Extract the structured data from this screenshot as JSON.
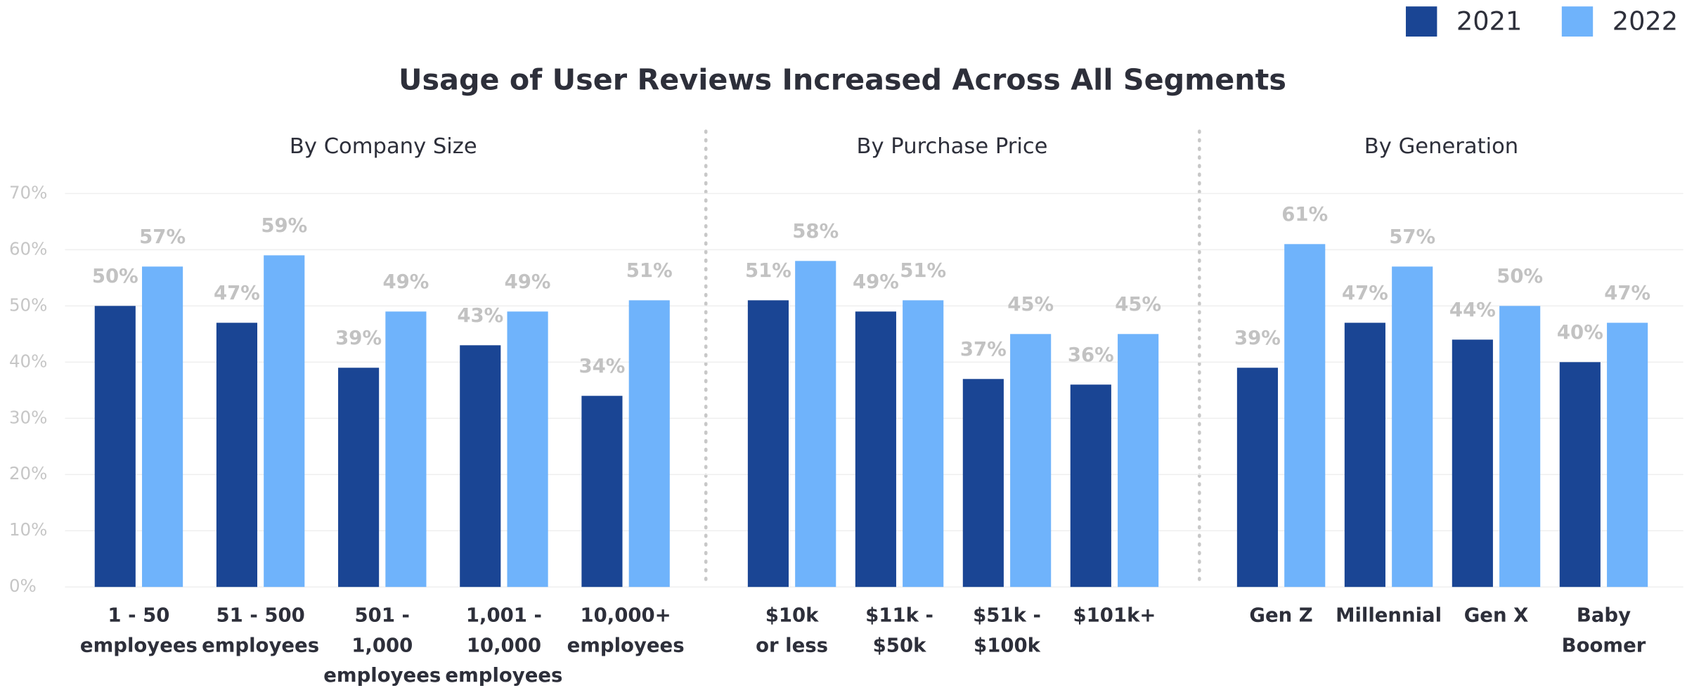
{
  "title": "Usage of User Reviews Increased Across All Segments",
  "chart_data": [
    {
      "type": "bar",
      "subtitle": "By Company Size",
      "categories": [
        "1 - 50\nemployees",
        "51 - 500\nemployees",
        "501 -\n1,000\nemployees",
        "1,001 -\n10,000\nemployees",
        "10,000+\nemployees"
      ],
      "series": [
        {
          "name": "2021",
          "color": "#1a4594",
          "values": [
            50,
            47,
            39,
            43,
            34
          ],
          "value_labels": [
            "50%",
            "47%",
            "39%",
            "43%",
            "34%"
          ]
        },
        {
          "name": "2022",
          "color": "#6fb3fb",
          "values": [
            57,
            59,
            49,
            49,
            51
          ],
          "value_labels": [
            "57%",
            "59%",
            "49%",
            "49%",
            "51%"
          ]
        }
      ],
      "ylim": [
        0,
        70
      ],
      "yticks": [
        {
          "value": 0,
          "label": "0%"
        },
        {
          "value": 10,
          "label": "10%"
        },
        {
          "value": 20,
          "label": "20%"
        },
        {
          "value": 30,
          "label": "30%"
        },
        {
          "value": 40,
          "label": "40%"
        },
        {
          "value": 50,
          "label": "50%"
        },
        {
          "value": 60,
          "label": "60%"
        },
        {
          "value": 70,
          "label": "70%"
        }
      ],
      "grid": true
    },
    {
      "type": "bar",
      "subtitle": "By Purchase Price",
      "categories": [
        "$10k\nor less",
        "$11k -\n$50k",
        "$51k -\n$100k",
        "$101k+"
      ],
      "series": [
        {
          "name": "2021",
          "color": "#1a4594",
          "values": [
            51,
            49,
            37,
            36
          ],
          "value_labels": [
            "51%",
            "49%",
            "37%",
            "36%"
          ]
        },
        {
          "name": "2022",
          "color": "#6fb3fb",
          "values": [
            58,
            51,
            45,
            45
          ],
          "value_labels": [
            "58%",
            "51%",
            "45%",
            "45%"
          ]
        }
      ],
      "ylim": [
        0,
        70
      ]
    },
    {
      "type": "bar",
      "subtitle": "By Generation",
      "categories": [
        "Gen Z",
        "Millennial",
        "Gen X",
        "Baby\nBoomer"
      ],
      "series": [
        {
          "name": "2021",
          "color": "#1a4594",
          "values": [
            39,
            47,
            44,
            40
          ],
          "value_labels": [
            "39%",
            "47%",
            "44%",
            "40%"
          ]
        },
        {
          "name": "2022",
          "color": "#6fb3fb",
          "values": [
            61,
            57,
            50,
            47
          ],
          "value_labels": [
            "61%",
            "57%",
            "50%",
            "47%"
          ]
        }
      ],
      "ylim": [
        0,
        70
      ]
    }
  ]
}
